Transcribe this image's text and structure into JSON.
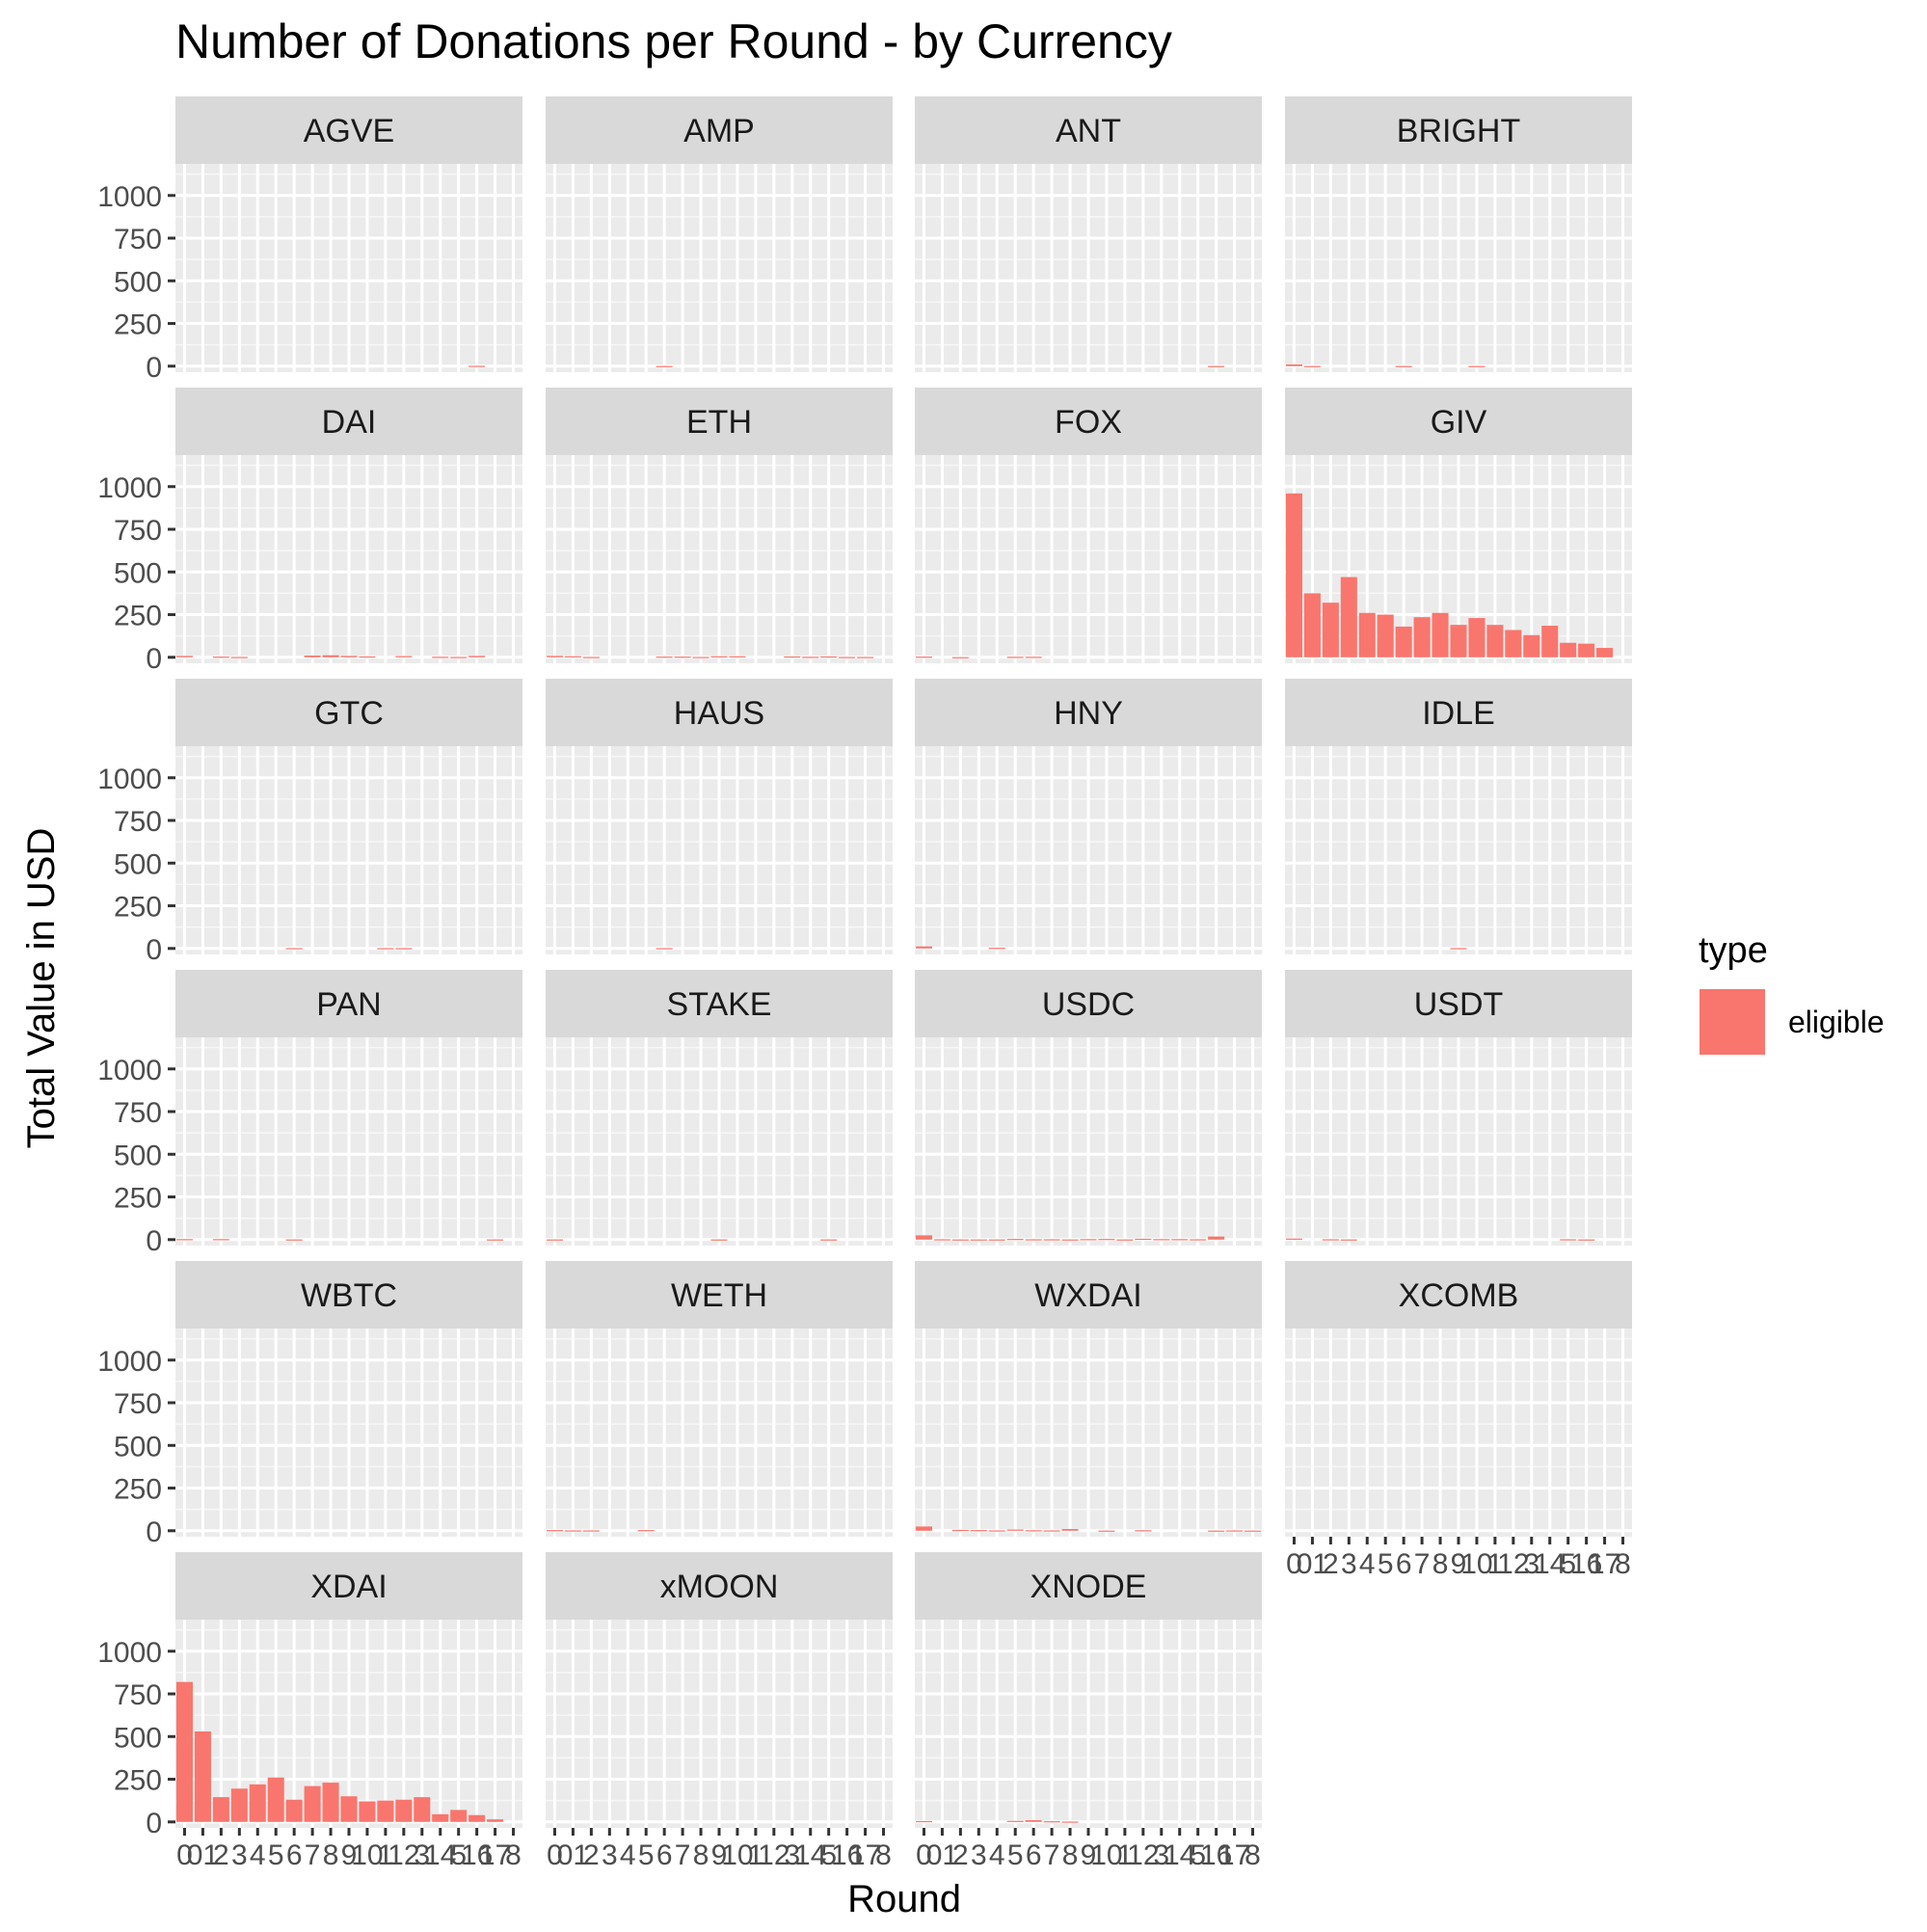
{
  "chart_data": {
    "type": "bar",
    "title": "Number of Donations per Round - by Currency",
    "xlabel": "Round",
    "ylabel": "Total Value in USD",
    "ylim": [
      0,
      1000
    ],
    "yticks": [
      0,
      250,
      500,
      750,
      1000
    ],
    "x": [
      "00",
      "01",
      "02",
      "03",
      "04",
      "05",
      "06",
      "07",
      "08",
      "09",
      "10",
      "11",
      "12",
      "13",
      "14",
      "15",
      "16",
      "17",
      "18"
    ],
    "xticklabels_printed": [
      "0",
      "01",
      "2",
      "3",
      "4",
      "5",
      "6",
      "7",
      "8",
      "9",
      "10",
      "1",
      "12",
      "3",
      "14",
      "5",
      "16",
      "17",
      "8"
    ],
    "legend": {
      "title": "type",
      "position": "right",
      "entries": [
        {
          "label": "eligible",
          "color": "#F8766D"
        }
      ]
    },
    "grid": true,
    "facets": [
      {
        "name": "AGVE",
        "values": [
          0,
          0,
          0,
          0,
          0,
          0,
          0,
          0,
          0,
          0,
          0,
          0,
          0,
          0,
          0,
          0,
          2,
          0,
          0
        ]
      },
      {
        "name": "AMP",
        "values": [
          0,
          0,
          0,
          0,
          0,
          0,
          1,
          0,
          0,
          0,
          0,
          0,
          0,
          0,
          0,
          0,
          0,
          0,
          0
        ]
      },
      {
        "name": "ANT",
        "values": [
          0,
          0,
          0,
          0,
          0,
          0,
          0,
          0,
          0,
          0,
          0,
          0,
          0,
          0,
          0,
          0,
          1,
          0,
          0
        ]
      },
      {
        "name": "BRIGHT",
        "values": [
          10,
          1,
          0,
          0,
          0,
          0,
          1,
          0,
          0,
          0,
          1,
          0,
          0,
          0,
          0,
          0,
          0,
          0,
          0
        ]
      },
      {
        "name": "DAI",
        "values": [
          8,
          0,
          4,
          2,
          0,
          0,
          0,
          10,
          12,
          8,
          5,
          0,
          7,
          0,
          3,
          2,
          8,
          0,
          0
        ]
      },
      {
        "name": "ETH",
        "values": [
          8,
          6,
          2,
          0,
          0,
          0,
          4,
          4,
          2,
          6,
          6,
          0,
          0,
          5,
          3,
          5,
          2,
          2,
          0
        ]
      },
      {
        "name": "FOX",
        "values": [
          4,
          0,
          1,
          0,
          0,
          3,
          3,
          0,
          0,
          0,
          0,
          0,
          0,
          0,
          0,
          0,
          0,
          0,
          0
        ]
      },
      {
        "name": "GIV",
        "values": [
          960,
          375,
          320,
          470,
          260,
          250,
          180,
          235,
          260,
          190,
          230,
          190,
          160,
          130,
          185,
          85,
          80,
          55,
          0
        ]
      },
      {
        "name": "GTC",
        "values": [
          0,
          0,
          0,
          0,
          0,
          0,
          2,
          0,
          0,
          0,
          0,
          2,
          2,
          0,
          0,
          0,
          0,
          0,
          0
        ]
      },
      {
        "name": "HAUS",
        "values": [
          0,
          0,
          0,
          0,
          0,
          0,
          2,
          0,
          0,
          0,
          0,
          0,
          0,
          0,
          0,
          0,
          0,
          0,
          0
        ]
      },
      {
        "name": "HNY",
        "values": [
          12,
          0,
          0,
          0,
          4,
          0,
          0,
          0,
          0,
          0,
          0,
          0,
          0,
          0,
          0,
          0,
          0,
          0,
          0
        ]
      },
      {
        "name": "IDLE",
        "values": [
          0,
          0,
          0,
          0,
          0,
          0,
          0,
          0,
          0,
          2,
          0,
          0,
          0,
          0,
          0,
          0,
          0,
          0,
          0
        ]
      },
      {
        "name": "PAN",
        "values": [
          3,
          0,
          3,
          0,
          0,
          0,
          1,
          0,
          0,
          0,
          0,
          0,
          0,
          0,
          0,
          0,
          0,
          1,
          0
        ]
      },
      {
        "name": "STAKE",
        "values": [
          1,
          0,
          0,
          0,
          0,
          0,
          0,
          0,
          0,
          1,
          0,
          0,
          0,
          0,
          0,
          1,
          0,
          0,
          0
        ]
      },
      {
        "name": "USDC",
        "values": [
          25,
          2,
          1,
          1,
          1,
          4,
          2,
          2,
          1,
          3,
          4,
          1,
          5,
          3,
          3,
          2,
          18,
          0,
          0
        ]
      },
      {
        "name": "USDT",
        "values": [
          6,
          0,
          2,
          1,
          0,
          0,
          0,
          0,
          0,
          0,
          0,
          0,
          0,
          0,
          0,
          2,
          1,
          0,
          0
        ]
      },
      {
        "name": "WBTC",
        "values": [
          0,
          0,
          0,
          0,
          0,
          0,
          0,
          0,
          0,
          0,
          0,
          0,
          0,
          0,
          0,
          0,
          0,
          0,
          0
        ]
      },
      {
        "name": "WETH",
        "values": [
          4,
          2,
          2,
          0,
          0,
          4,
          0,
          0,
          0,
          0,
          0,
          0,
          0,
          0,
          0,
          0,
          0,
          0,
          0
        ]
      },
      {
        "name": "WXDAI",
        "values": [
          25,
          0,
          5,
          4,
          2,
          7,
          3,
          2,
          10,
          0,
          1,
          0,
          3,
          0,
          0,
          0,
          1,
          2,
          1
        ]
      },
      {
        "name": "XCOMB",
        "values": [
          0,
          0,
          0,
          0,
          0,
          0,
          0,
          0,
          0,
          0,
          0,
          0,
          0,
          0,
          0,
          0,
          0,
          0,
          0
        ]
      },
      {
        "name": "XDAI",
        "values": [
          820,
          530,
          145,
          195,
          220,
          260,
          130,
          210,
          230,
          150,
          120,
          125,
          130,
          145,
          45,
          70,
          40,
          15,
          0
        ]
      },
      {
        "name": "xMOON",
        "values": [
          0,
          0,
          0,
          0,
          0,
          0,
          0,
          0,
          0,
          0,
          0,
          0,
          0,
          0,
          0,
          0,
          0,
          0,
          0
        ]
      },
      {
        "name": "XNODE",
        "values": [
          5,
          0,
          0,
          0,
          0,
          6,
          10,
          4,
          2,
          0,
          0,
          0,
          0,
          0,
          0,
          0,
          0,
          0,
          0
        ]
      }
    ]
  }
}
